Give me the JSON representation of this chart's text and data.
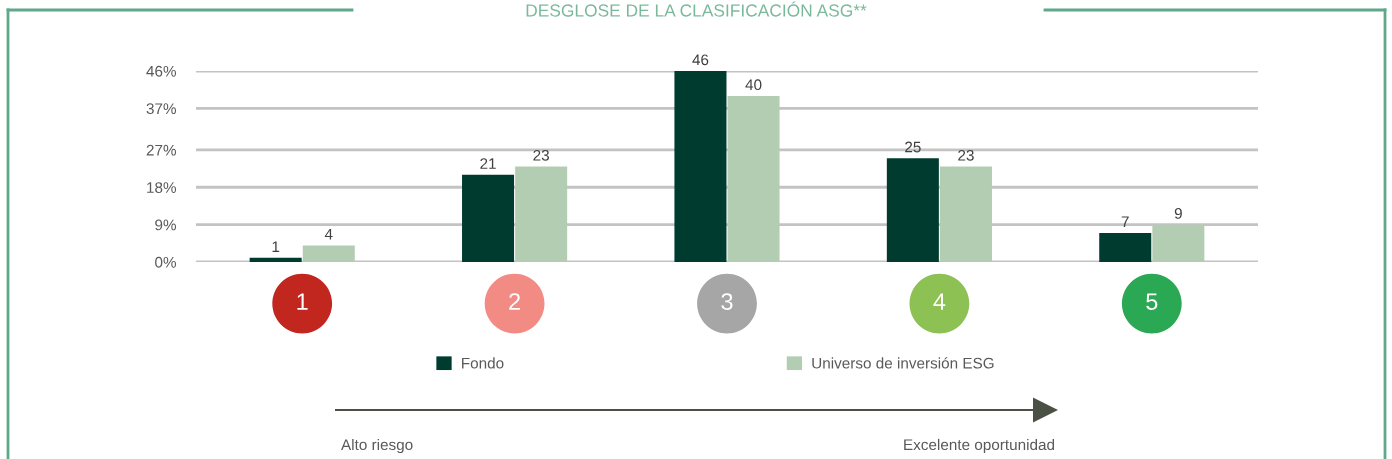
{
  "chart_data": {
    "type": "bar",
    "title": "DESGLOSE DE LA CLASIFICACIÓN ASG**",
    "categories": [
      "1",
      "2",
      "3",
      "4",
      "5"
    ],
    "series": [
      {
        "name": "Fondo",
        "color": "#003b30",
        "values": [
          1,
          21,
          46,
          25,
          7
        ]
      },
      {
        "name": "Universo de inversión ESG",
        "color": "#b3cdb3",
        "values": [
          4,
          23,
          40,
          23,
          9
        ]
      }
    ],
    "ylim": [
      0,
      46
    ],
    "yticks": [
      {
        "value": 0,
        "label": "0%"
      },
      {
        "value": 9,
        "label": "9%"
      },
      {
        "value": 18,
        "label": "18%"
      },
      {
        "value": 27,
        "label": "27%"
      },
      {
        "value": 37,
        "label": "37%"
      },
      {
        "value": 46,
        "label": "46%"
      }
    ],
    "grid": "y",
    "legend": "bottom",
    "data_labels": true,
    "annotations": [
      "Alto riesgo",
      "Excelente oportunidad"
    ]
  }
}
